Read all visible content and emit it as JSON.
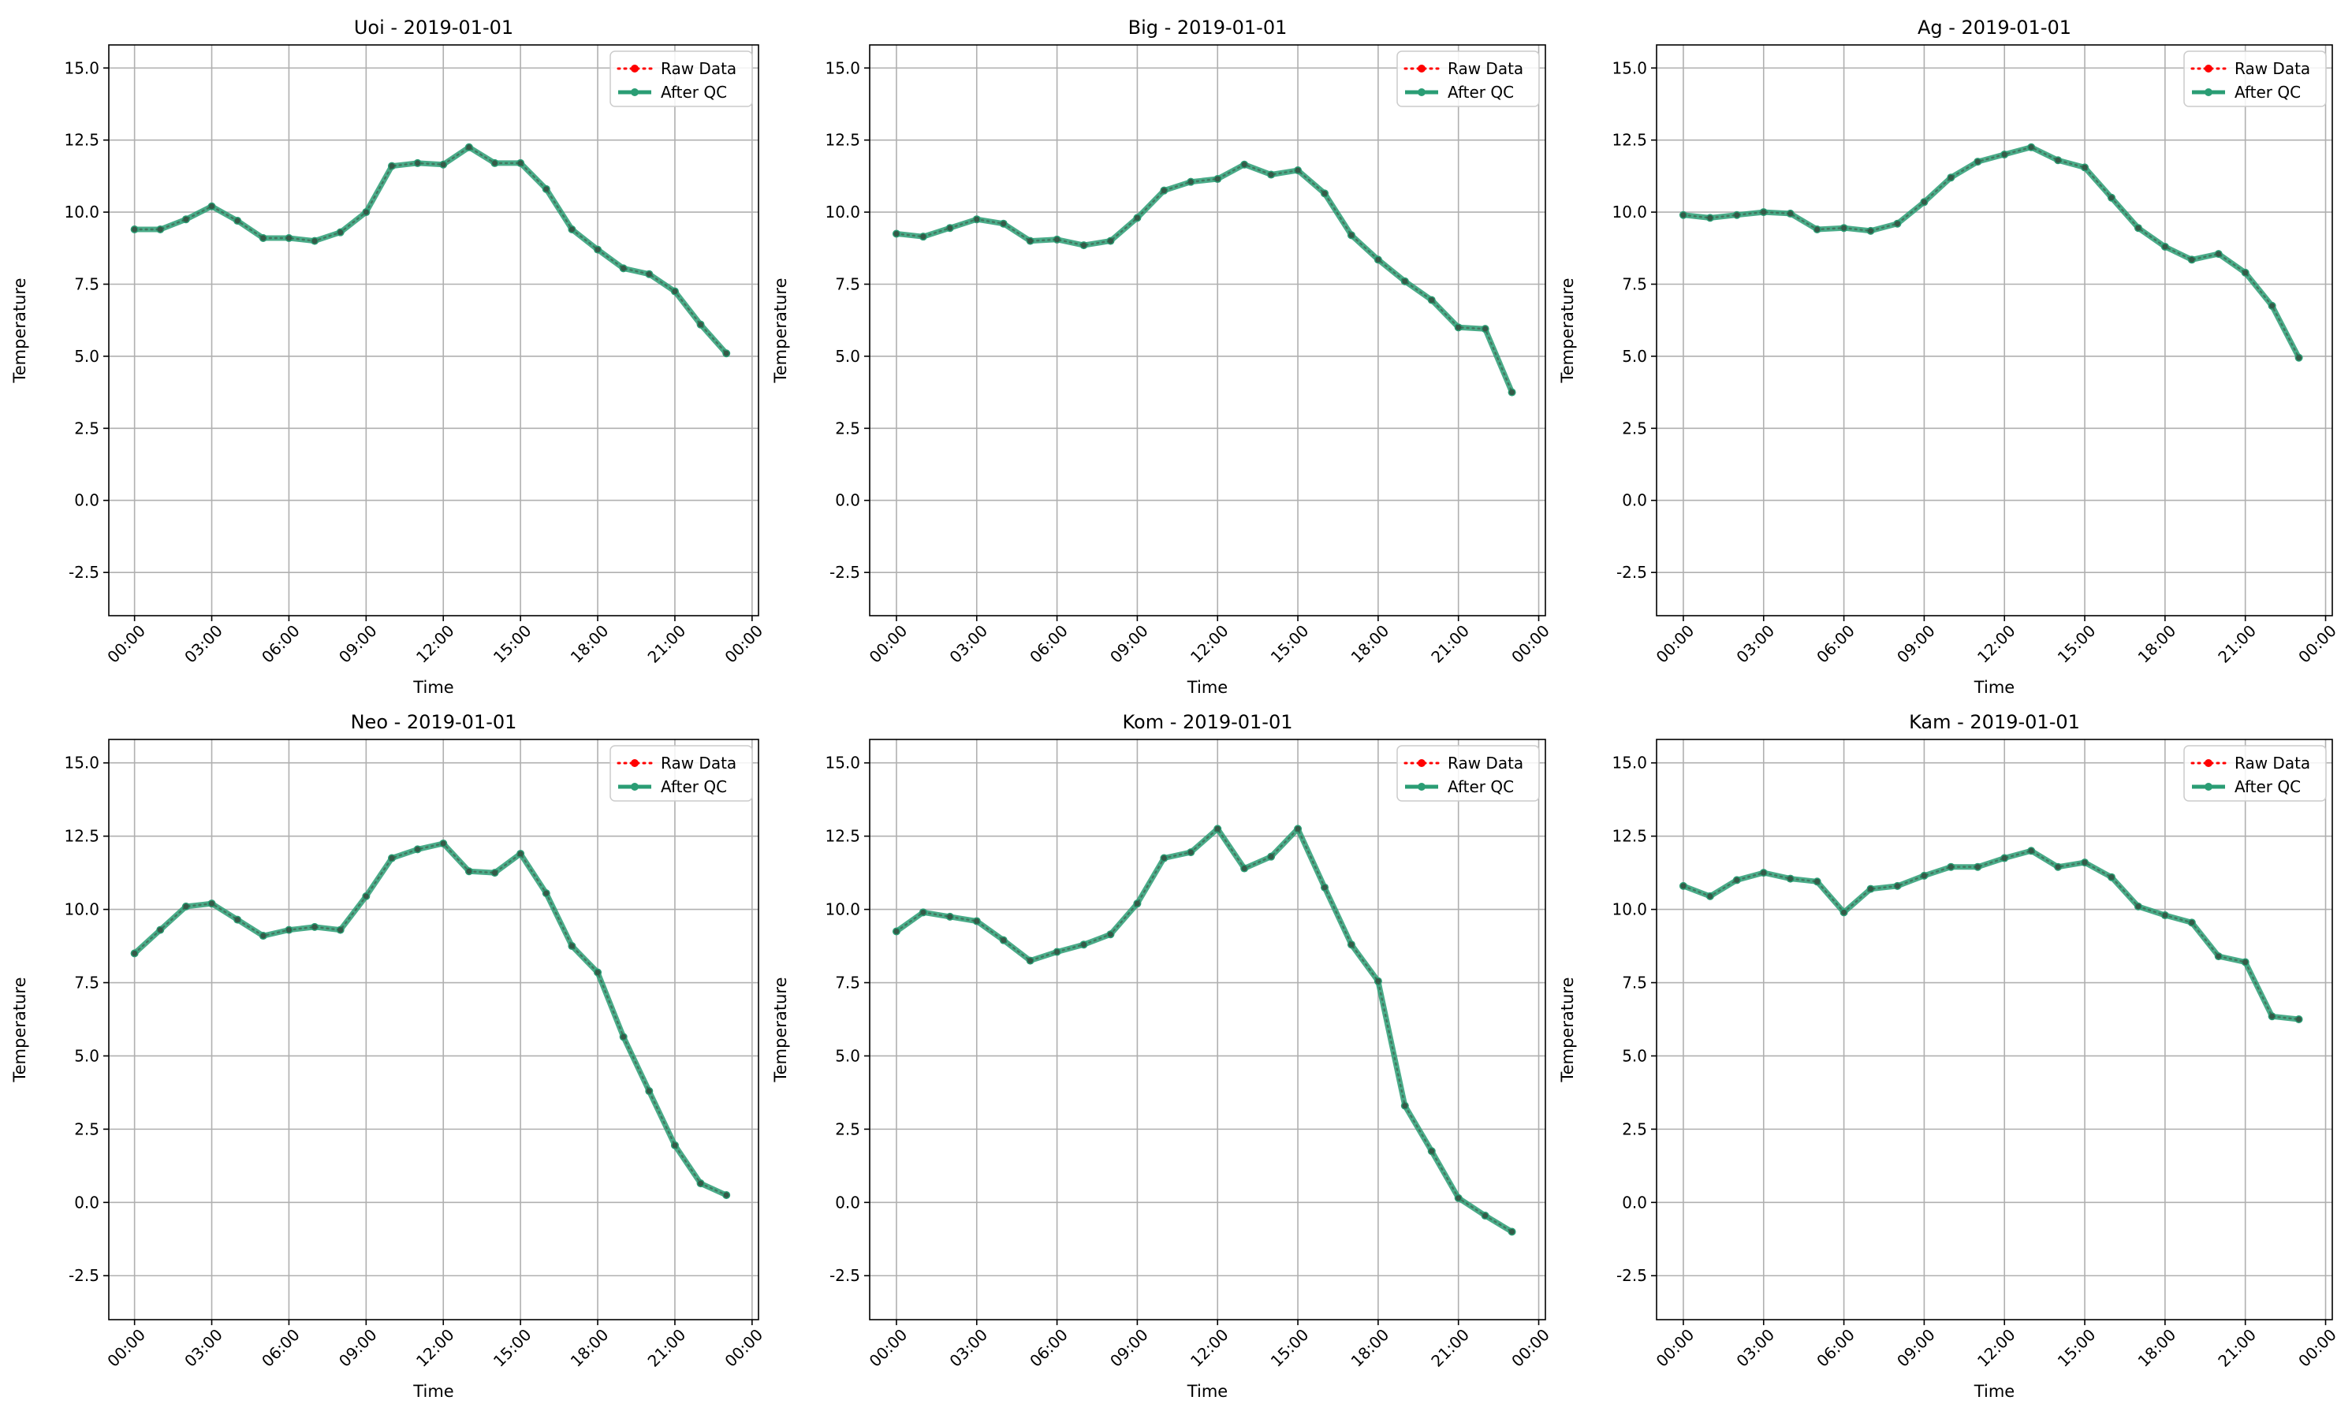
{
  "legend_labels": {
    "raw": "Raw Data",
    "qc": "After QC"
  },
  "colors": {
    "raw": "#ff0000",
    "qc": "#2a9d74",
    "grid": "#b0b0b0",
    "axis": "#000000"
  },
  "chart_data": [
    {
      "type": "line",
      "title": "Uoi - 2019-01-01",
      "xlabel": "Time",
      "ylabel": "Temperature",
      "xlim": [
        "2018-12-31 23:00",
        "2019-01-02 00:15"
      ],
      "ylim": [
        -4,
        15.8
      ],
      "xticks": [
        "00:00",
        "03:00",
        "06:00",
        "09:00",
        "12:00",
        "15:00",
        "18:00",
        "21:00",
        "00:00"
      ],
      "yticks": [
        "-2.5",
        "0.0",
        "2.5",
        "5.0",
        "7.5",
        "10.0",
        "12.5",
        "15.0"
      ],
      "grid": true,
      "legend": "top-right",
      "x": [
        "00:00",
        "01:00",
        "02:00",
        "03:00",
        "04:00",
        "05:00",
        "06:00",
        "07:00",
        "08:00",
        "09:00",
        "10:00",
        "11:00",
        "12:00",
        "13:00",
        "14:00",
        "15:00",
        "16:00",
        "17:00",
        "18:00",
        "19:00",
        "20:00",
        "21:00",
        "22:00",
        "23:00"
      ],
      "series": [
        {
          "name": "Raw Data",
          "values": [
            9.4,
            9.4,
            9.75,
            10.2,
            9.7,
            9.1,
            9.1,
            9.0,
            9.3,
            10.0,
            11.6,
            11.7,
            11.65,
            12.25,
            11.7,
            11.7,
            10.8,
            9.4,
            8.7,
            8.05,
            7.85,
            7.25,
            6.1,
            5.1
          ]
        },
        {
          "name": "After QC",
          "values": [
            9.4,
            9.4,
            9.75,
            10.2,
            9.7,
            9.1,
            9.1,
            9.0,
            9.3,
            10.0,
            11.6,
            11.7,
            11.65,
            12.25,
            11.7,
            11.7,
            10.8,
            9.4,
            8.7,
            8.05,
            7.85,
            7.25,
            6.1,
            5.1
          ]
        }
      ]
    },
    {
      "type": "line",
      "title": "Big - 2019-01-01",
      "xlabel": "Time",
      "ylabel": "Temperature",
      "xlim": [
        "2018-12-31 23:00",
        "2019-01-02 00:15"
      ],
      "ylim": [
        -4,
        15.8
      ],
      "xticks": [
        "00:00",
        "03:00",
        "06:00",
        "09:00",
        "12:00",
        "15:00",
        "18:00",
        "21:00",
        "00:00"
      ],
      "yticks": [
        "-2.5",
        "0.0",
        "2.5",
        "5.0",
        "7.5",
        "10.0",
        "12.5",
        "15.0"
      ],
      "grid": true,
      "legend": "top-right",
      "x": [
        "00:00",
        "01:00",
        "02:00",
        "03:00",
        "04:00",
        "05:00",
        "06:00",
        "07:00",
        "08:00",
        "09:00",
        "10:00",
        "11:00",
        "12:00",
        "13:00",
        "14:00",
        "15:00",
        "16:00",
        "17:00",
        "18:00",
        "19:00",
        "20:00",
        "21:00",
        "22:00",
        "23:00"
      ],
      "series": [
        {
          "name": "Raw Data",
          "values": [
            9.25,
            9.15,
            9.45,
            9.75,
            9.6,
            9.0,
            9.05,
            8.85,
            9.0,
            9.8,
            10.75,
            11.05,
            11.15,
            11.65,
            11.3,
            11.45,
            10.65,
            9.2,
            8.35,
            7.6,
            6.95,
            6.0,
            5.95,
            3.75
          ]
        },
        {
          "name": "After QC",
          "values": [
            9.25,
            9.15,
            9.45,
            9.75,
            9.6,
            9.0,
            9.05,
            8.85,
            9.0,
            9.8,
            10.75,
            11.05,
            11.15,
            11.65,
            11.3,
            11.45,
            10.65,
            9.2,
            8.35,
            7.6,
            6.95,
            6.0,
            5.95,
            3.75
          ]
        }
      ]
    },
    {
      "type": "line",
      "title": "Ag - 2019-01-01",
      "xlabel": "Time",
      "ylabel": "Temperature",
      "xlim": [
        "2018-12-31 23:00",
        "2019-01-02 00:15"
      ],
      "ylim": [
        -4,
        15.8
      ],
      "xticks": [
        "00:00",
        "03:00",
        "06:00",
        "09:00",
        "12:00",
        "15:00",
        "18:00",
        "21:00",
        "00:00"
      ],
      "yticks": [
        "-2.5",
        "0.0",
        "2.5",
        "5.0",
        "7.5",
        "10.0",
        "12.5",
        "15.0"
      ],
      "grid": true,
      "legend": "top-right",
      "x": [
        "00:00",
        "01:00",
        "02:00",
        "03:00",
        "04:00",
        "05:00",
        "06:00",
        "07:00",
        "08:00",
        "09:00",
        "10:00",
        "11:00",
        "12:00",
        "13:00",
        "14:00",
        "15:00",
        "16:00",
        "17:00",
        "18:00",
        "19:00",
        "20:00",
        "21:00",
        "22:00",
        "23:00"
      ],
      "series": [
        {
          "name": "Raw Data",
          "values": [
            9.9,
            9.8,
            9.9,
            10.0,
            9.95,
            9.4,
            9.45,
            9.35,
            9.6,
            10.35,
            11.2,
            11.75,
            12.0,
            12.25,
            11.8,
            11.55,
            10.5,
            9.45,
            8.8,
            8.35,
            8.55,
            7.9,
            6.75,
            4.95
          ]
        },
        {
          "name": "After QC",
          "values": [
            9.9,
            9.8,
            9.9,
            10.0,
            9.95,
            9.4,
            9.45,
            9.35,
            9.6,
            10.35,
            11.2,
            11.75,
            12.0,
            12.25,
            11.8,
            11.55,
            10.5,
            9.45,
            8.8,
            8.35,
            8.55,
            7.9,
            6.75,
            4.95
          ]
        }
      ]
    },
    {
      "type": "line",
      "title": "Neo - 2019-01-01",
      "xlabel": "Time",
      "ylabel": "Temperature",
      "xlim": [
        "2018-12-31 23:00",
        "2019-01-02 00:15"
      ],
      "ylim": [
        -4,
        15.8
      ],
      "xticks": [
        "00:00",
        "03:00",
        "06:00",
        "09:00",
        "12:00",
        "15:00",
        "18:00",
        "21:00",
        "00:00"
      ],
      "yticks": [
        "-2.5",
        "0.0",
        "2.5",
        "5.0",
        "7.5",
        "10.0",
        "12.5",
        "15.0"
      ],
      "grid": true,
      "legend": "top-right",
      "x": [
        "00:00",
        "01:00",
        "02:00",
        "03:00",
        "04:00",
        "05:00",
        "06:00",
        "07:00",
        "08:00",
        "09:00",
        "10:00",
        "11:00",
        "12:00",
        "13:00",
        "14:00",
        "15:00",
        "16:00",
        "17:00",
        "18:00",
        "19:00",
        "20:00",
        "21:00",
        "22:00",
        "23:00"
      ],
      "series": [
        {
          "name": "Raw Data",
          "values": [
            8.5,
            9.3,
            10.1,
            10.2,
            9.65,
            9.1,
            9.3,
            9.4,
            9.3,
            10.45,
            11.75,
            12.05,
            12.25,
            11.3,
            11.25,
            11.9,
            10.55,
            8.75,
            7.85,
            5.65,
            3.8,
            1.95,
            0.65,
            0.25
          ]
        },
        {
          "name": "After QC",
          "values": [
            8.5,
            9.3,
            10.1,
            10.2,
            9.65,
            9.1,
            9.3,
            9.4,
            9.3,
            10.45,
            11.75,
            12.05,
            12.25,
            11.3,
            11.25,
            11.9,
            10.55,
            8.75,
            7.85,
            5.65,
            3.8,
            1.95,
            0.65,
            0.25
          ]
        }
      ]
    },
    {
      "type": "line",
      "title": "Kom - 2019-01-01",
      "xlabel": "Time",
      "ylabel": "Temperature",
      "xlim": [
        "2018-12-31 23:00",
        "2019-01-02 00:15"
      ],
      "ylim": [
        -4,
        15.8
      ],
      "xticks": [
        "00:00",
        "03:00",
        "06:00",
        "09:00",
        "12:00",
        "15:00",
        "18:00",
        "21:00",
        "00:00"
      ],
      "yticks": [
        "-2.5",
        "0.0",
        "2.5",
        "5.0",
        "7.5",
        "10.0",
        "12.5",
        "15.0"
      ],
      "grid": true,
      "legend": "top-right",
      "x": [
        "00:00",
        "01:00",
        "02:00",
        "03:00",
        "04:00",
        "05:00",
        "06:00",
        "07:00",
        "08:00",
        "09:00",
        "10:00",
        "11:00",
        "12:00",
        "13:00",
        "14:00",
        "15:00",
        "16:00",
        "17:00",
        "18:00",
        "19:00",
        "20:00",
        "21:00",
        "22:00",
        "23:00"
      ],
      "series": [
        {
          "name": "Raw Data",
          "values": [
            9.25,
            9.9,
            9.75,
            9.6,
            8.95,
            8.25,
            8.55,
            8.8,
            9.15,
            10.2,
            11.75,
            11.95,
            12.75,
            11.4,
            11.8,
            12.75,
            10.75,
            8.8,
            7.55,
            3.3,
            1.75,
            0.15,
            -0.45,
            -1.0
          ]
        },
        {
          "name": "After QC",
          "values": [
            9.25,
            9.9,
            9.75,
            9.6,
            8.95,
            8.25,
            8.55,
            8.8,
            9.15,
            10.2,
            11.75,
            11.95,
            12.75,
            11.4,
            11.8,
            12.75,
            10.75,
            8.8,
            7.55,
            3.3,
            1.75,
            0.15,
            -0.45,
            -1.0
          ]
        }
      ]
    },
    {
      "type": "line",
      "title": "Kam - 2019-01-01",
      "xlabel": "Time",
      "ylabel": "Temperature",
      "xlim": [
        "2018-12-31 23:00",
        "2019-01-02 00:15"
      ],
      "ylim": [
        -4,
        15.8
      ],
      "xticks": [
        "00:00",
        "03:00",
        "06:00",
        "09:00",
        "12:00",
        "15:00",
        "18:00",
        "21:00",
        "00:00"
      ],
      "yticks": [
        "-2.5",
        "0.0",
        "2.5",
        "5.0",
        "7.5",
        "10.0",
        "12.5",
        "15.0"
      ],
      "grid": true,
      "legend": "top-right",
      "x": [
        "00:00",
        "01:00",
        "02:00",
        "03:00",
        "04:00",
        "05:00",
        "06:00",
        "07:00",
        "08:00",
        "09:00",
        "10:00",
        "11:00",
        "12:00",
        "13:00",
        "14:00",
        "15:00",
        "16:00",
        "17:00",
        "18:00",
        "19:00",
        "20:00",
        "21:00",
        "22:00",
        "23:00"
      ],
      "series": [
        {
          "name": "Raw Data",
          "values": [
            10.8,
            10.45,
            11.0,
            11.25,
            11.05,
            10.95,
            9.9,
            10.7,
            10.8,
            11.15,
            11.45,
            11.45,
            11.75,
            12.0,
            11.45,
            11.6,
            11.1,
            10.1,
            9.8,
            9.55,
            8.4,
            8.2,
            6.35,
            6.25
          ]
        },
        {
          "name": "After QC",
          "values": [
            10.8,
            10.45,
            11.0,
            11.25,
            11.05,
            10.95,
            9.9,
            10.7,
            10.8,
            11.15,
            11.45,
            11.45,
            11.75,
            12.0,
            11.45,
            11.6,
            11.1,
            10.1,
            9.8,
            9.55,
            8.4,
            8.2,
            6.35,
            6.25
          ]
        }
      ]
    }
  ]
}
